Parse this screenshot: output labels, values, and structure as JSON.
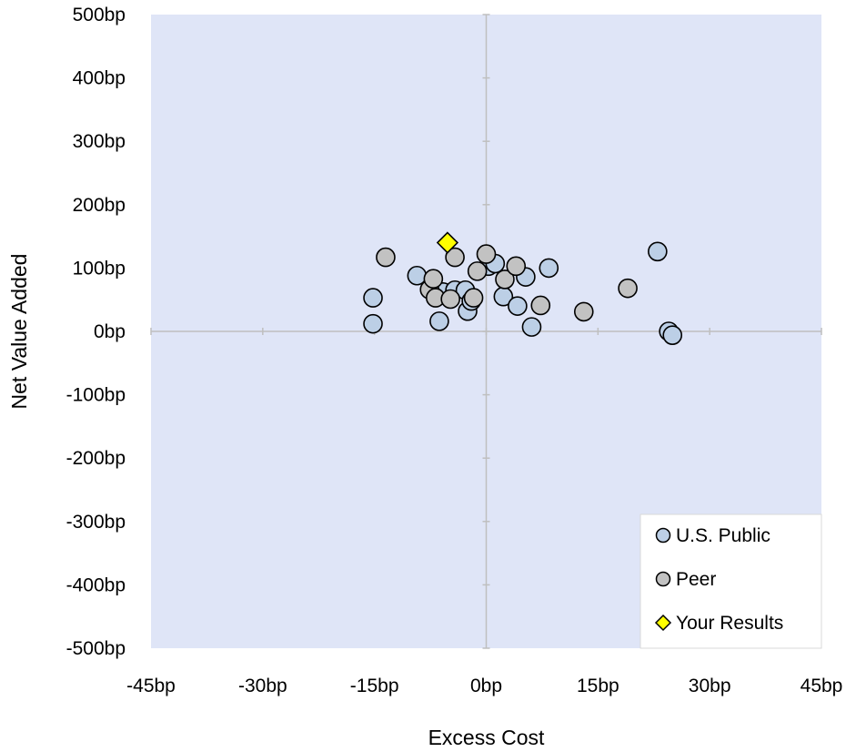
{
  "chart_data": {
    "type": "scatter",
    "title": "",
    "xlabel": "Excess Cost",
    "ylabel": "Net Value Added",
    "xlim": [
      -45,
      45
    ],
    "ylim": [
      -500,
      500
    ],
    "x_ticks": [
      -45,
      -30,
      -15,
      0,
      15,
      30,
      45
    ],
    "y_ticks": [
      500,
      400,
      300,
      200,
      100,
      0,
      -100,
      -200,
      -300,
      -400,
      -500
    ],
    "x_tick_labels": [
      "-45bp",
      "-30bp",
      "-15bp",
      "0bp",
      "15bp",
      "30bp",
      "45bp"
    ],
    "y_tick_labels": [
      "500bp",
      "400bp",
      "300bp",
      "200bp",
      "100bp",
      "0bp",
      "-100bp",
      "-200bp",
      "-300bp",
      "-400bp",
      "-500bp"
    ],
    "grid": false,
    "plot_background": "#dfe5f7",
    "legend_position": "bottom-right",
    "series": [
      {
        "name": "U.S. Public",
        "marker": "circle",
        "color": "#bccfe6",
        "points": [
          [
            -15.2,
            53
          ],
          [
            -15.2,
            12
          ],
          [
            -9.3,
            88
          ],
          [
            -6.3,
            16
          ],
          [
            -5.8,
            62
          ],
          [
            -4.2,
            65
          ],
          [
            -2.8,
            65
          ],
          [
            -2.5,
            32
          ],
          [
            -2.0,
            48
          ],
          [
            0.3,
            103
          ],
          [
            1.2,
            107
          ],
          [
            2.3,
            55
          ],
          [
            4.2,
            40
          ],
          [
            5.3,
            86
          ],
          [
            6.1,
            7
          ],
          [
            8.4,
            100
          ],
          [
            23.0,
            126
          ],
          [
            24.5,
            0
          ],
          [
            25.0,
            -6
          ]
        ]
      },
      {
        "name": "Peer",
        "marker": "circle",
        "color": "#c2c2c2",
        "points": [
          [
            -13.5,
            117
          ],
          [
            -7.6,
            66
          ],
          [
            -7.1,
            83
          ],
          [
            -6.8,
            53
          ],
          [
            -4.8,
            51
          ],
          [
            -4.2,
            117
          ],
          [
            -1.7,
            53
          ],
          [
            -1.2,
            95
          ],
          [
            0.0,
            122
          ],
          [
            2.5,
            82
          ],
          [
            4.0,
            103
          ],
          [
            7.3,
            41
          ],
          [
            13.1,
            31
          ],
          [
            19.0,
            68
          ]
        ]
      },
      {
        "name": "Your Results",
        "marker": "diamond",
        "color": "#ffff00",
        "points": [
          [
            -5.2,
            140
          ]
        ]
      }
    ]
  }
}
